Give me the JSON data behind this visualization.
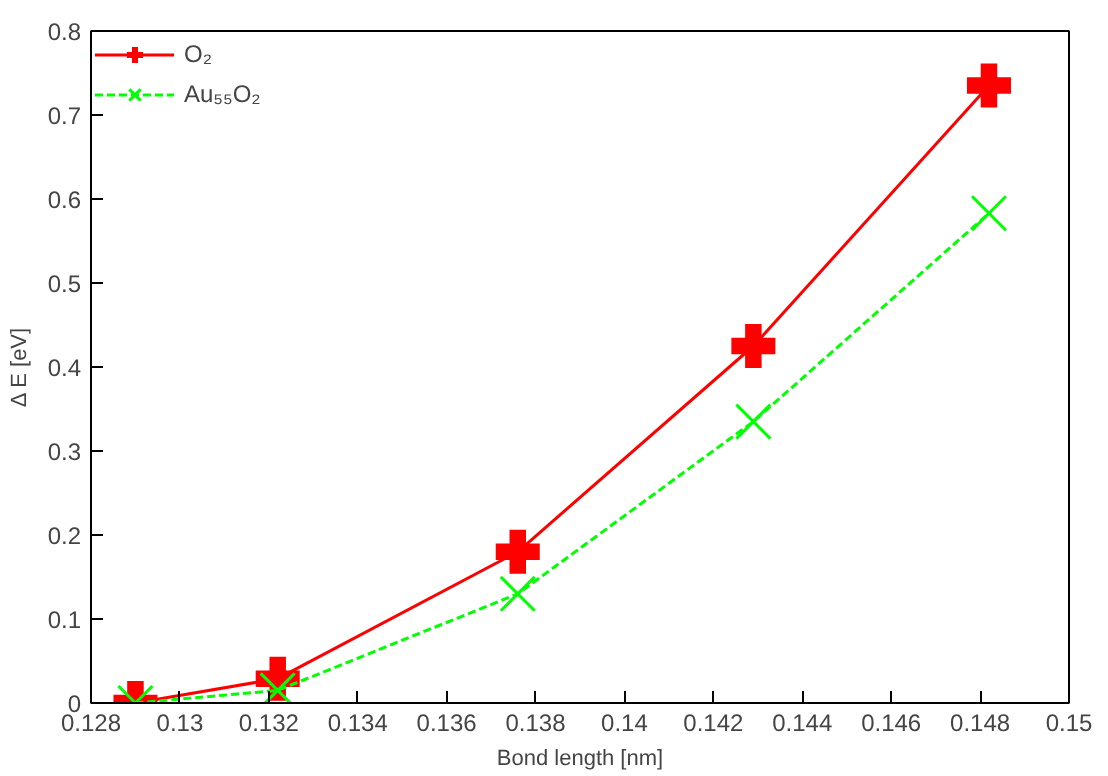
{
  "chart_data": {
    "type": "line",
    "xlabel": "Bond length [nm]",
    "ylabel": "Δ E [eV]",
    "xlim": [
      0.128,
      0.15
    ],
    "ylim": [
      0,
      0.8
    ],
    "xticks": [
      0.128,
      0.13,
      0.132,
      0.134,
      0.136,
      0.138,
      0.14,
      0.142,
      0.144,
      0.146,
      0.148,
      0.15
    ],
    "yticks": [
      0,
      0.1,
      0.2,
      0.3,
      0.4,
      0.5,
      0.6,
      0.7,
      0.8
    ],
    "x": [
      0.129,
      0.1322,
      0.1376,
      0.1429,
      0.1482
    ],
    "series": [
      {
        "name": "O₂",
        "color": "#ff0000",
        "values": [
          0,
          0.029,
          0.18,
          0.425,
          0.735
        ],
        "marker": "cross",
        "line_style": "solid"
      },
      {
        "name": "Au₅₅O₂",
        "color": "#00ff00",
        "values": [
          0,
          0.015,
          0.13,
          0.335,
          0.583
        ],
        "marker": "x",
        "line_style": "dashed"
      }
    ],
    "grid": false,
    "legend": "top left"
  }
}
